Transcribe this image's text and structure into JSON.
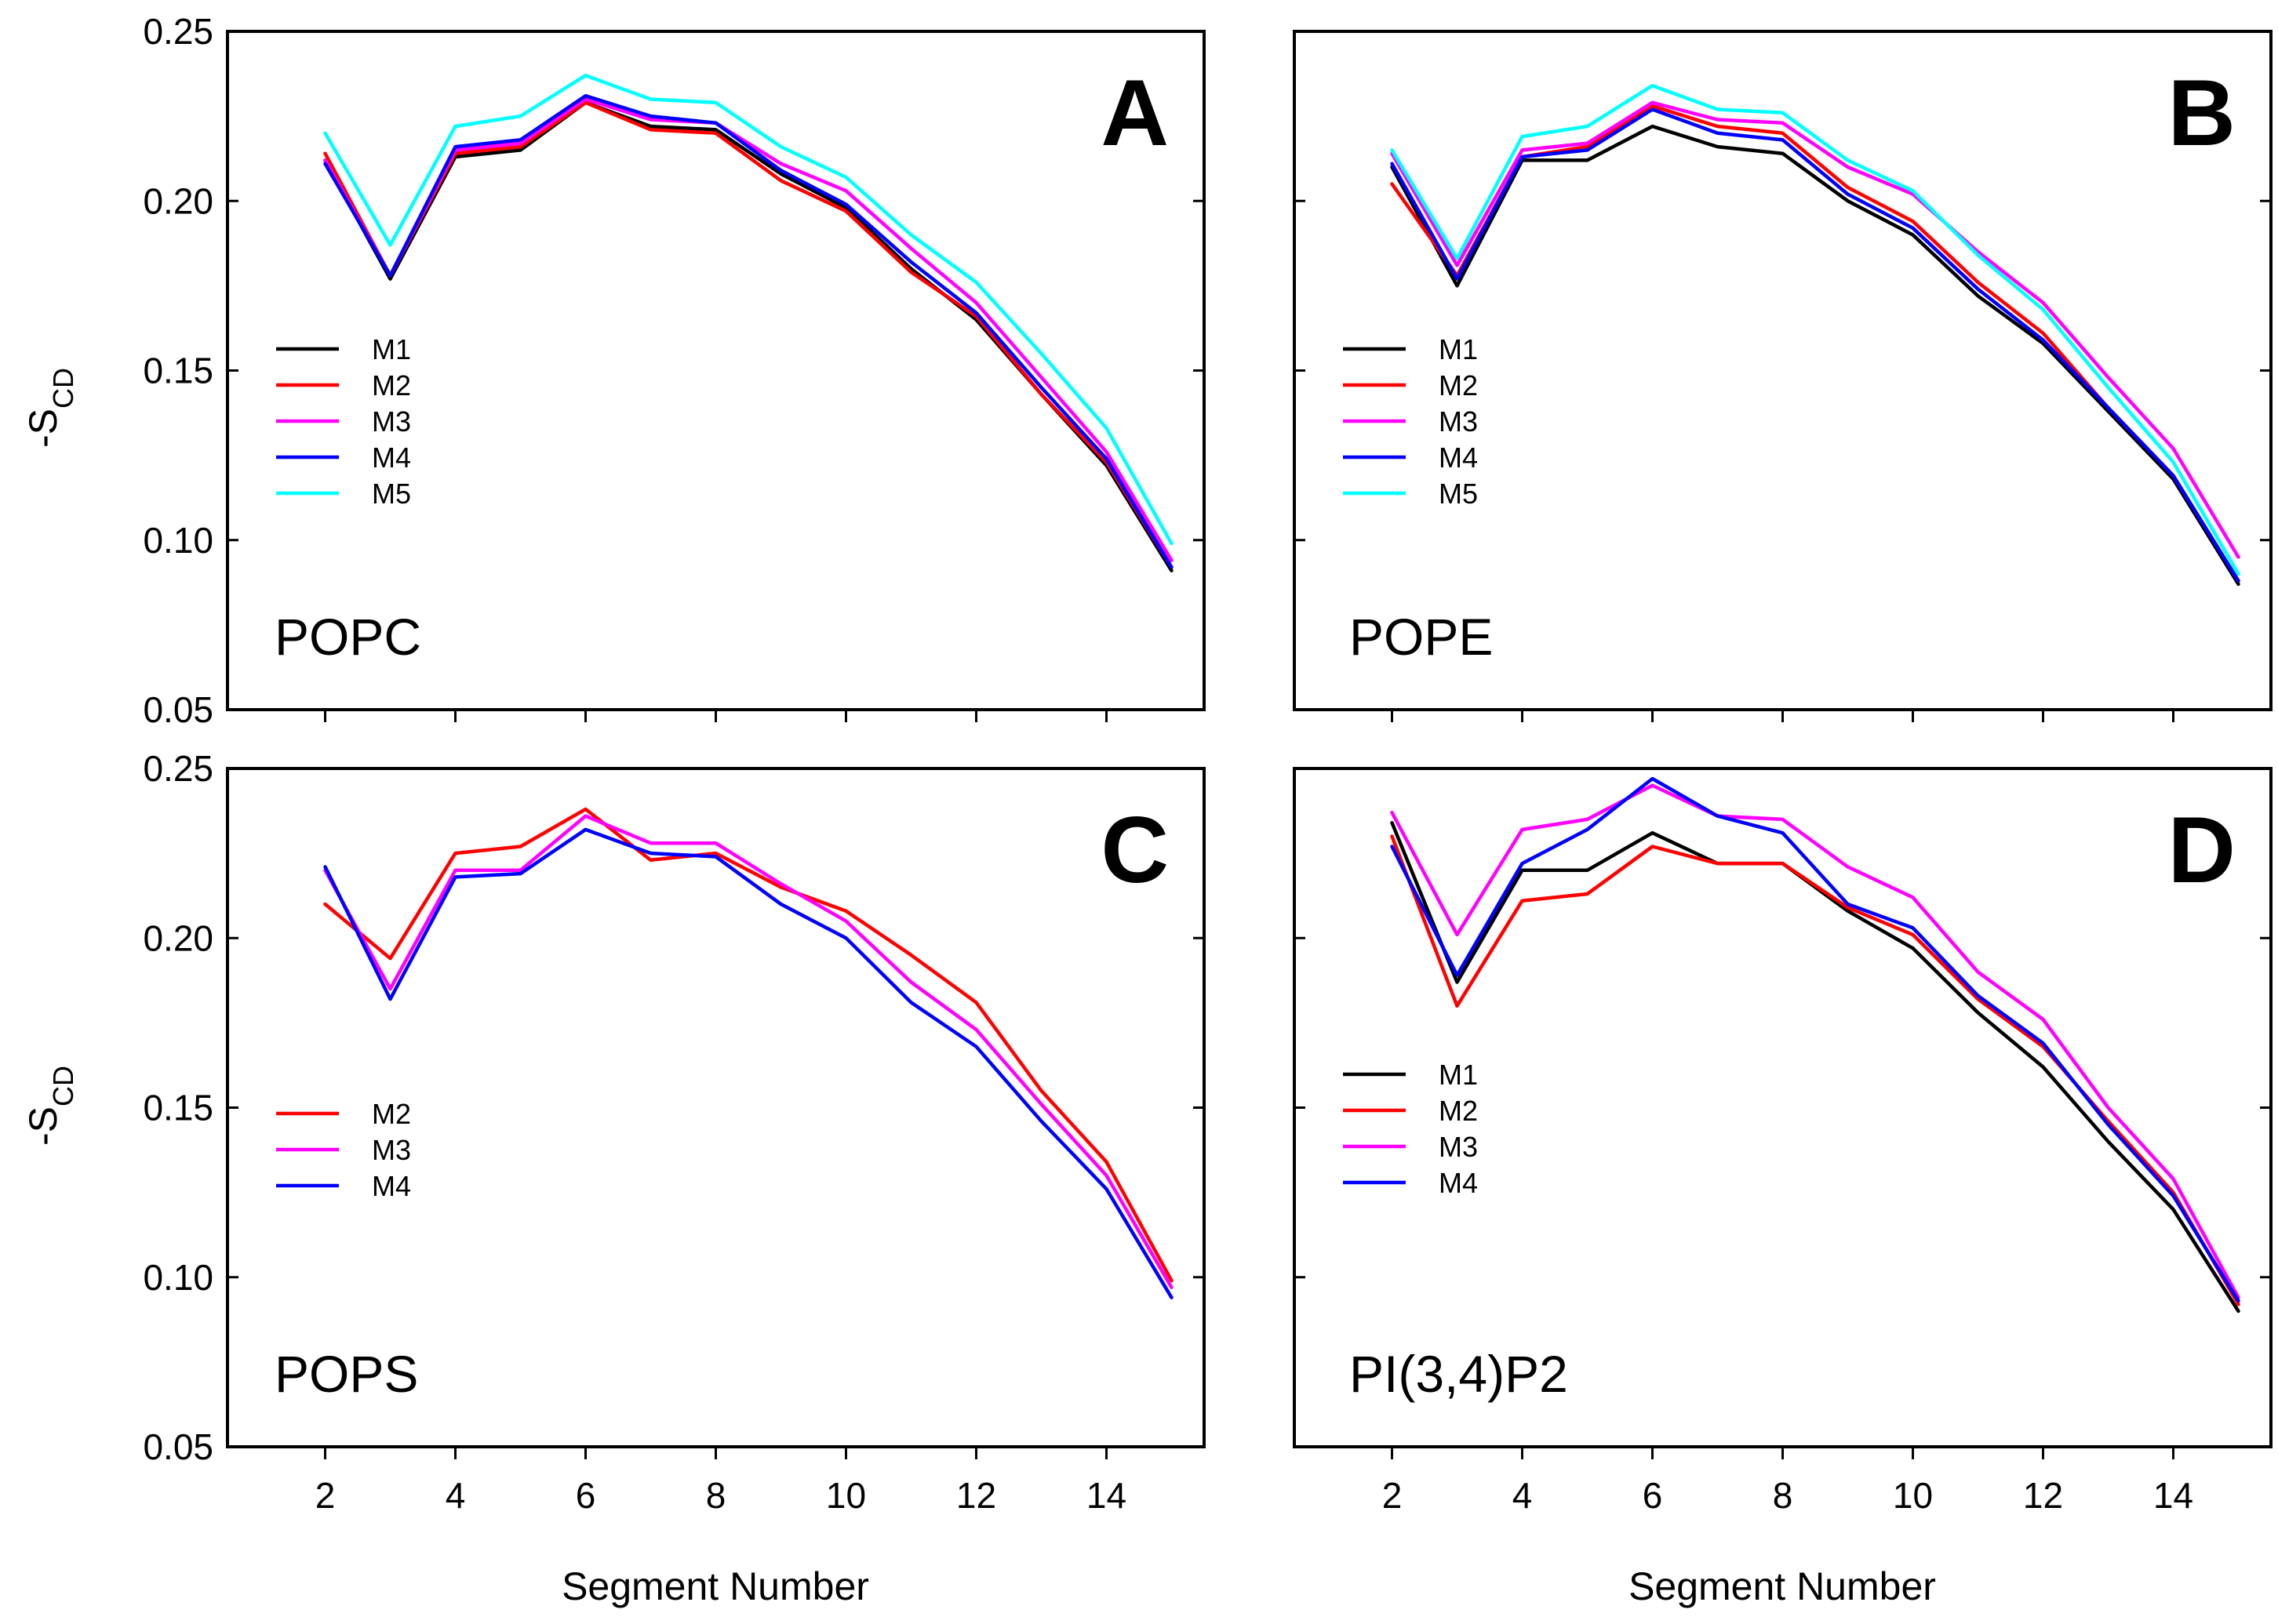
{
  "figure": {
    "shared_xlabel": "Segment Number",
    "ylabel_main": "-S",
    "ylabel_sub": "CD",
    "colors": {
      "M1": "#000000",
      "M2": "#ff0000",
      "M3": "#ff00ff",
      "M4": "#0000ff",
      "M5": "#00ffff",
      "lipid_label_D": "#555555"
    }
  },
  "chart_data": [
    {
      "type": "line",
      "panel": "A",
      "lipid": "POPC",
      "xlabel": "",
      "ylabel": "-S_CD",
      "xlim": [
        0.5,
        15.5
      ],
      "ylim": [
        0.05,
        0.25
      ],
      "xticks": [
        "2",
        "4",
        "6",
        "8",
        "10",
        "12",
        "14"
      ],
      "yticks": [
        "0.05",
        "0.10",
        "0.15",
        "0.20",
        "0.25"
      ],
      "legend": [
        "M1",
        "M2",
        "M3",
        "M4",
        "M5"
      ],
      "x": [
        2,
        3,
        4,
        5,
        6,
        7,
        8,
        9,
        10,
        11,
        12,
        13,
        14,
        15
      ],
      "series": [
        {
          "name": "M1",
          "values": [
            0.212,
            0.177,
            0.213,
            0.215,
            0.229,
            0.222,
            0.221,
            0.208,
            0.198,
            0.18,
            0.165,
            0.143,
            0.122,
            0.091
          ]
        },
        {
          "name": "M2",
          "values": [
            0.214,
            0.178,
            0.214,
            0.216,
            0.229,
            0.221,
            0.22,
            0.206,
            0.197,
            0.179,
            0.166,
            0.143,
            0.123,
            0.092
          ]
        },
        {
          "name": "M3",
          "values": [
            0.212,
            0.178,
            0.215,
            0.217,
            0.23,
            0.224,
            0.223,
            0.211,
            0.203,
            0.186,
            0.17,
            0.148,
            0.126,
            0.094
          ]
        },
        {
          "name": "M4",
          "values": [
            0.211,
            0.178,
            0.216,
            0.218,
            0.231,
            0.225,
            0.223,
            0.209,
            0.199,
            0.182,
            0.167,
            0.145,
            0.124,
            0.092
          ]
        },
        {
          "name": "M5",
          "values": [
            0.22,
            0.187,
            0.222,
            0.225,
            0.237,
            0.23,
            0.229,
            0.216,
            0.207,
            0.19,
            0.176,
            0.155,
            0.133,
            0.099
          ]
        }
      ]
    },
    {
      "type": "line",
      "panel": "B",
      "lipid": "POPE",
      "xlabel": "",
      "ylabel": "",
      "xlim": [
        0.5,
        15.5
      ],
      "ylim": [
        0.05,
        0.25
      ],
      "xticks": [
        "2",
        "4",
        "6",
        "8",
        "10",
        "12",
        "14"
      ],
      "yticks": [
        "0.05",
        "0.10",
        "0.15",
        "0.20",
        "0.25"
      ],
      "legend": [
        "M1",
        "M2",
        "M3",
        "M4",
        "M5"
      ],
      "x": [
        2,
        3,
        4,
        5,
        6,
        7,
        8,
        9,
        10,
        11,
        12,
        13,
        14,
        15
      ],
      "series": [
        {
          "name": "M1",
          "values": [
            0.21,
            0.175,
            0.212,
            0.212,
            0.222,
            0.216,
            0.214,
            0.2,
            0.19,
            0.172,
            0.158,
            0.138,
            0.118,
            0.087
          ]
        },
        {
          "name": "M2",
          "values": [
            0.205,
            0.178,
            0.213,
            0.216,
            0.228,
            0.222,
            0.22,
            0.204,
            0.194,
            0.176,
            0.161,
            0.139,
            0.119,
            0.088
          ]
        },
        {
          "name": "M3",
          "values": [
            0.214,
            0.181,
            0.215,
            0.217,
            0.229,
            0.224,
            0.223,
            0.21,
            0.202,
            0.185,
            0.17,
            0.148,
            0.127,
            0.095
          ]
        },
        {
          "name": "M4",
          "values": [
            0.211,
            0.177,
            0.213,
            0.215,
            0.227,
            0.22,
            0.218,
            0.202,
            0.192,
            0.174,
            0.159,
            0.139,
            0.119,
            0.088
          ]
        },
        {
          "name": "M5",
          "values": [
            0.215,
            0.183,
            0.219,
            0.222,
            0.234,
            0.227,
            0.226,
            0.212,
            0.203,
            0.184,
            0.168,
            0.145,
            0.123,
            0.09
          ]
        }
      ]
    },
    {
      "type": "line",
      "panel": "C",
      "lipid": "POPS",
      "xlabel": "Segment Number",
      "ylabel": "-S_CD",
      "xlim": [
        0.5,
        15.5
      ],
      "ylim": [
        0.05,
        0.25
      ],
      "xticks": [
        "2",
        "4",
        "6",
        "8",
        "10",
        "12",
        "14"
      ],
      "yticks": [
        "0.05",
        "0.10",
        "0.15",
        "0.20",
        "0.25"
      ],
      "legend": [
        "M2",
        "M3",
        "M4"
      ],
      "x": [
        2,
        3,
        4,
        5,
        6,
        7,
        8,
        9,
        10,
        11,
        12,
        13,
        14,
        15
      ],
      "series": [
        {
          "name": "M2",
          "values": [
            0.21,
            0.194,
            0.225,
            0.227,
            0.238,
            0.223,
            0.225,
            0.215,
            0.208,
            0.195,
            0.181,
            0.155,
            0.134,
            0.099
          ]
        },
        {
          "name": "M3",
          "values": [
            0.22,
            0.185,
            0.22,
            0.22,
            0.236,
            0.228,
            0.228,
            0.216,
            0.205,
            0.187,
            0.173,
            0.151,
            0.13,
            0.097
          ]
        },
        {
          "name": "M4",
          "values": [
            0.221,
            0.182,
            0.218,
            0.219,
            0.232,
            0.225,
            0.224,
            0.21,
            0.2,
            0.181,
            0.168,
            0.146,
            0.126,
            0.094
          ]
        }
      ]
    },
    {
      "type": "line",
      "panel": "D",
      "lipid": "PI(3,4)P2",
      "xlabel": "Segment Number",
      "ylabel": "",
      "xlim": [
        0.5,
        15.5
      ],
      "ylim": [
        0.05,
        0.25
      ],
      "xticks": [
        "2",
        "4",
        "6",
        "8",
        "10",
        "12",
        "14"
      ],
      "yticks": [
        "0.05",
        "0.10",
        "0.15",
        "0.20",
        "0.25"
      ],
      "legend": [
        "M1",
        "M2",
        "M3",
        "M4"
      ],
      "x": [
        2,
        3,
        4,
        5,
        6,
        7,
        8,
        9,
        10,
        11,
        12,
        13,
        14,
        15
      ],
      "series": [
        {
          "name": "M1",
          "values": [
            0.234,
            0.187,
            0.22,
            0.22,
            0.231,
            0.222,
            0.222,
            0.208,
            0.197,
            0.178,
            0.162,
            0.14,
            0.12,
            0.09
          ]
        },
        {
          "name": "M2",
          "values": [
            0.23,
            0.18,
            0.211,
            0.213,
            0.227,
            0.222,
            0.222,
            0.209,
            0.201,
            0.182,
            0.168,
            0.146,
            0.125,
            0.092
          ]
        },
        {
          "name": "M3",
          "values": [
            0.237,
            0.201,
            0.232,
            0.235,
            0.245,
            0.236,
            0.235,
            0.221,
            0.212,
            0.19,
            0.176,
            0.15,
            0.129,
            0.094
          ]
        },
        {
          "name": "M4",
          "values": [
            0.227,
            0.189,
            0.222,
            0.232,
            0.247,
            0.236,
            0.231,
            0.21,
            0.203,
            0.183,
            0.169,
            0.145,
            0.124,
            0.093
          ]
        }
      ]
    }
  ]
}
